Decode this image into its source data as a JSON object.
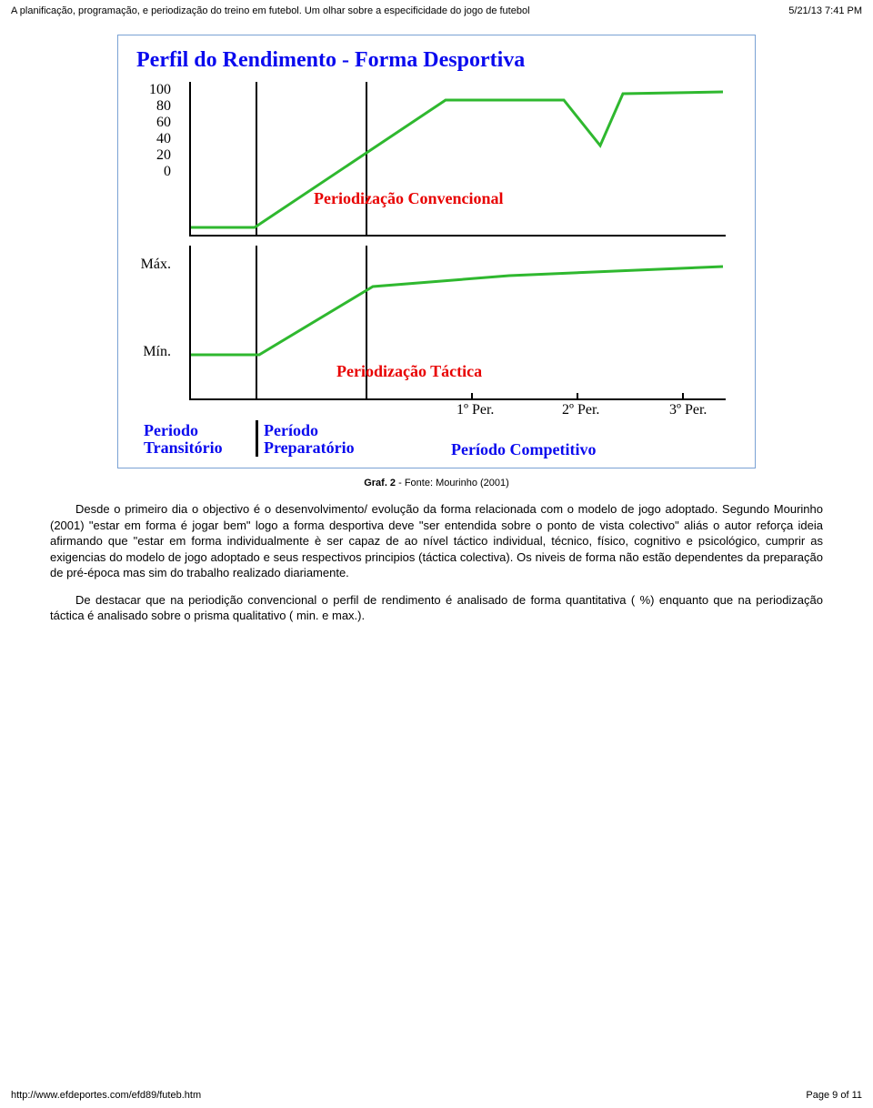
{
  "header": {
    "title": "A planificação, programação, e periodização do treino em futebol. Um olhar sobre a especificidade do jogo de futebol",
    "datetime": "5/21/13 7:41 PM"
  },
  "chart": {
    "type": "line",
    "title": "Perfil do Rendimento - Forma Desportiva",
    "title_color": "#0a0aee",
    "border_color": "#7aa2d4",
    "background_color": "#ffffff",
    "line_color": "#2fb82f",
    "line_width": 3,
    "panel1": {
      "y_ticks": [
        "100",
        "80",
        "60",
        "40",
        "20",
        "0"
      ],
      "inner_label": "Periodização Convencional",
      "inner_label_color": "#e80000",
      "series": [
        {
          "x": 70,
          "y": 160
        },
        {
          "x": 140,
          "y": 160
        },
        {
          "x": 350,
          "y": 20
        },
        {
          "x": 480,
          "y": 20
        },
        {
          "x": 520,
          "y": 70
        },
        {
          "x": 545,
          "y": 13
        },
        {
          "x": 655,
          "y": 11
        }
      ]
    },
    "panel2": {
      "y_ticks": [
        "Máx.",
        "Mín."
      ],
      "inner_label": "Periodização Táctica",
      "inner_label_color": "#e80000",
      "series": [
        {
          "x": 70,
          "y": 120
        },
        {
          "x": 145,
          "y": 120
        },
        {
          "x": 270,
          "y": 45
        },
        {
          "x": 420,
          "y": 33
        },
        {
          "x": 560,
          "y": 27
        },
        {
          "x": 655,
          "y": 23
        }
      ]
    },
    "periods": {
      "p1": "1º Per.",
      "p2": "2º Per.",
      "p3": "3º Per.",
      "trans": "Periodo Transitório",
      "prep": "Período Preparatório",
      "comp": "Período Competitivo"
    }
  },
  "caption": {
    "bold": "Graf. 2",
    "rest": " - Fonte: Mourinho (2001)"
  },
  "paragraphs": {
    "p1": "Desde o primeiro dia o objectivo é o desenvolvimento/ evolução da forma relacionada com o modelo de jogo adoptado. Segundo Mourinho (2001) \"estar em forma é jogar bem\" logo a forma desportiva deve \"ser entendida sobre o ponto de vista colectivo\" aliás o autor reforça ideia afirmando que \"estar em forma individualmente è ser capaz de ao nível táctico individual, técnico, físico, cognitivo e psicológico, cumprir as exigencias do modelo de jogo adoptado e seus respectivos principios (táctica colectiva). Os niveis de forma não estão dependentes da preparação de pré-época mas sim do trabalho realizado diariamente.",
    "p2": "De destacar que na periodição convencional o perfil de rendimento é analisado de forma quantitativa ( %) enquanto que na periodização táctica é analisado sobre o prisma qualitativo ( min. e max.)."
  },
  "footer": {
    "url": "http://www.efdeportes.com/efd89/futeb.htm",
    "page": "Page 9 of 11"
  }
}
